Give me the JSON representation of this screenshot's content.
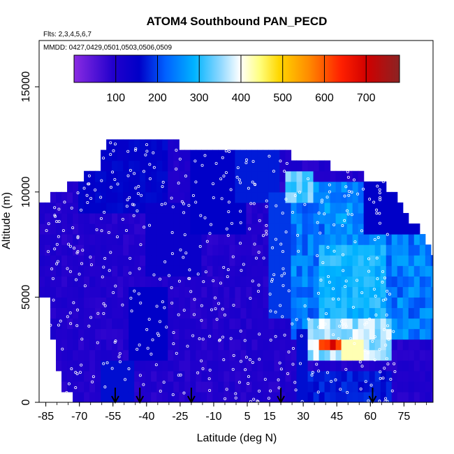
{
  "chart_data": {
    "type": "heatmap",
    "title": "ATOM4 Southbound PAN_PECD",
    "subtitle_flights": "Flts: 2,3,4,5,6,7",
    "subtitle_dates": "MMDD: 0427,0429,0501,0503,0506,0509",
    "xlabel": "Latitude (deg N)",
    "ylabel": "Altitude (m)",
    "xlim": [
      -88,
      88
    ],
    "ylim": [
      0,
      17200
    ],
    "x_ticks": [
      -85,
      -70,
      -55,
      -40,
      -25,
      -10,
      5,
      15,
      30,
      45,
      60,
      75
    ],
    "y_ticks": [
      0,
      5000,
      10000,
      15000
    ],
    "colorbar": {
      "range": [
        0,
        780
      ],
      "ticks": [
        100,
        200,
        300,
        400,
        500,
        600,
        700
      ],
      "colors": [
        "#8a2be2",
        "#0000cd",
        "#00bfff",
        "#ffffff",
        "#ffff00",
        "#ff8c00",
        "#ff0000",
        "#8b2323"
      ],
      "placement": "top-inside"
    },
    "profile_latitudes": [
      -54,
      -43,
      -20,
      20,
      61
    ],
    "description_regions": [
      {
        "lat": [
          -88,
          88
        ],
        "alt": [
          0,
          12000
        ],
        "value": 90
      }
    ],
    "grid": false
  }
}
